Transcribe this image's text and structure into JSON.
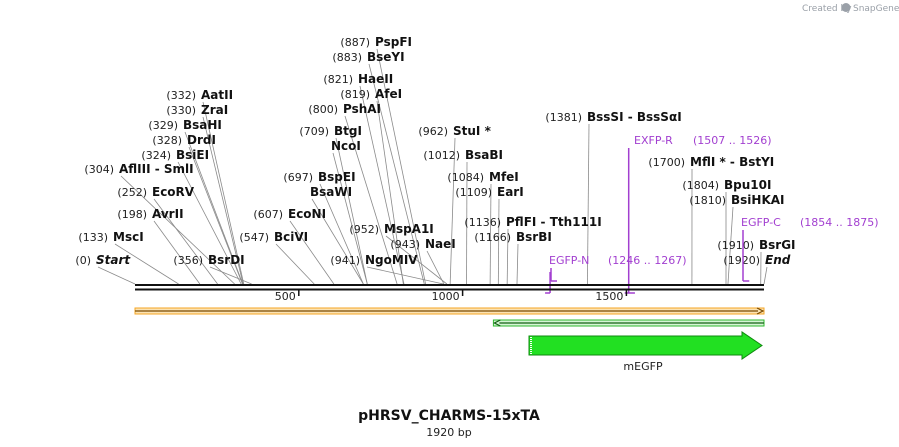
{
  "credit": {
    "prefix": "Created by",
    "brand": "SnapGene"
  },
  "plasmid": {
    "name": "pHRSV_CHARMS-15xTA",
    "length_label": "1920 bp",
    "length_bp": 1920
  },
  "ruler": {
    "ticks": [
      500,
      1000,
      1500
    ]
  },
  "sites": [
    {
      "id": "start",
      "name": "Start",
      "pos": "(0)",
      "bp": 0,
      "italic": true
    },
    {
      "id": "msci",
      "name": "MscI",
      "pos": "(133)",
      "bp": 133
    },
    {
      "id": "avrii",
      "name": "AvrII",
      "pos": "(198)",
      "bp": 198
    },
    {
      "id": "ecorv",
      "name": "EcoRV",
      "pos": "(252)",
      "bp": 252
    },
    {
      "id": "afliii",
      "name": "AflIII  - SmlI",
      "pos": "(304)",
      "bp": 304
    },
    {
      "id": "bsiei",
      "name": "BsiEI",
      "pos": "(324)",
      "bp": 324
    },
    {
      "id": "drdi",
      "name": "DrdI",
      "pos": "(328)",
      "bp": 328
    },
    {
      "id": "bsahi",
      "name": "BsaHI",
      "pos": "(329)",
      "bp": 329
    },
    {
      "id": "zrai",
      "name": "ZraI",
      "pos": "(330)",
      "bp": 330
    },
    {
      "id": "aatii",
      "name": "AatII",
      "pos": "(332)",
      "bp": 332
    },
    {
      "id": "bsrdi",
      "name": "BsrDI",
      "pos": "(356)",
      "bp": 356
    },
    {
      "id": "bcivi",
      "name": "BciVI",
      "pos": "(547)",
      "bp": 547
    },
    {
      "id": "econi",
      "name": "EcoNI",
      "pos": "(607)",
      "bp": 607
    },
    {
      "id": "bsawi",
      "name": "BsaWI",
      "pos": "",
      "bp": 697
    },
    {
      "id": "bspei",
      "name": "BspEI",
      "pos": "(697)",
      "bp": 697
    },
    {
      "id": "ncoi",
      "name": "NcoI",
      "pos": "",
      "bp": 709
    },
    {
      "id": "btgi",
      "name": "BtgI",
      "pos": "(709)",
      "bp": 709
    },
    {
      "id": "pshai",
      "name": "PshAI",
      "pos": "(800)",
      "bp": 800
    },
    {
      "id": "afei",
      "name": "AfeI",
      "pos": "(819)",
      "bp": 819
    },
    {
      "id": "haeii",
      "name": "HaeII",
      "pos": "(821)",
      "bp": 821
    },
    {
      "id": "bseyi",
      "name": "BseYI",
      "pos": "(883)",
      "bp": 883
    },
    {
      "id": "pspfi",
      "name": "PspFI",
      "pos": "(887)",
      "bp": 887
    },
    {
      "id": "ngomiv",
      "name": "NgoMIV",
      "pos": "(941)",
      "bp": 941
    },
    {
      "id": "naei",
      "name": "NaeI",
      "pos": "(943)",
      "bp": 943
    },
    {
      "id": "mspa1i",
      "name": "MspA1I",
      "pos": "(952)",
      "bp": 952
    },
    {
      "id": "stui",
      "name": "StuI *",
      "pos": "(962)",
      "bp": 962
    },
    {
      "id": "bsabi",
      "name": "BsaBI",
      "pos": "(1012)",
      "bp": 1012
    },
    {
      "id": "mfei",
      "name": "MfeI",
      "pos": "(1084)",
      "bp": 1084
    },
    {
      "id": "eari",
      "name": "EarI",
      "pos": "(1109)",
      "bp": 1109
    },
    {
      "id": "pflfi",
      "name": "PflFI  - Tth111I",
      "pos": "(1136)",
      "bp": 1136
    },
    {
      "id": "bsrbi",
      "name": "BsrBI",
      "pos": "(1166)",
      "bp": 1166
    },
    {
      "id": "bsssi",
      "name": "BssSI  - BssSαI",
      "pos": "(1381)",
      "bp": 1381
    },
    {
      "id": "mfli",
      "name": "MflI *  - BstYI",
      "pos": "(1700)",
      "bp": 1700
    },
    {
      "id": "bpu10i",
      "name": "Bpu10I",
      "pos": "(1804)",
      "bp": 1804
    },
    {
      "id": "bsihkai",
      "name": "BsiHKAI",
      "pos": "(1810)",
      "bp": 1810
    },
    {
      "id": "bsrgi",
      "name": "BsrGI",
      "pos": "(1910)",
      "bp": 1910
    },
    {
      "id": "end",
      "name": "End",
      "pos": "(1920)",
      "bp": 1920,
      "italic": true
    }
  ],
  "primers": [
    {
      "id": "exfp-r",
      "name": "EXFP-R",
      "range": "(1507 .. 1526)",
      "start": 1507,
      "end": 1526,
      "dir": "reverse"
    },
    {
      "id": "egfp-c",
      "name": "EGFP-C",
      "range": "(1854 .. 1875)",
      "start": 1854,
      "end": 1875,
      "dir": "forward"
    },
    {
      "id": "egfp-n",
      "name": "EGFP-N",
      "range": "(1246 .. 1267)",
      "start": 1246,
      "end": 1267,
      "dir": "forward"
    }
  ],
  "features": [
    {
      "id": "orange-bar",
      "name": "",
      "start": 0,
      "end": 1920,
      "color": "#f5a623",
      "dir": "forward"
    },
    {
      "id": "green-outline",
      "name": "",
      "start": 1094,
      "end": 1920,
      "color": "#2fb82f",
      "dir": "reverse"
    },
    {
      "id": "mEGFP",
      "name": "mEGFP",
      "start": 1200,
      "end": 1920,
      "color": "#22e022",
      "dir": "forward"
    }
  ],
  "colors": {
    "site": "#111111",
    "primer": "#a23fd0",
    "backbone": "#111111",
    "orange": "#f5a623",
    "green": "#2fb82f",
    "egfp": "#22e022"
  }
}
